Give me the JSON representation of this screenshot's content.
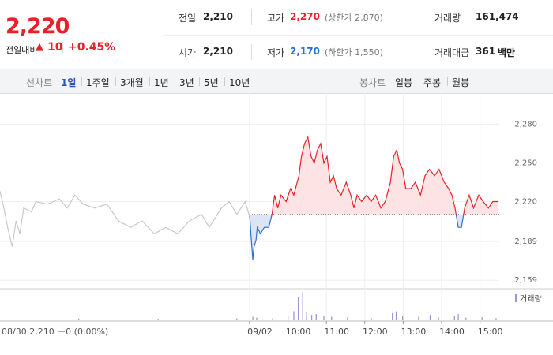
{
  "quote": {
    "price": "2,220",
    "change_label": "전일대비",
    "arrow": "▲",
    "change": "10",
    "percent": "+0.45%"
  },
  "info": {
    "rows": [
      [
        {
          "label": "전일",
          "value": "2,210"
        },
        {
          "label": "고가",
          "value": "2,270",
          "note": "(상한가 2,870)"
        },
        {
          "label": "거래량",
          "value": "161,474"
        }
      ],
      [
        {
          "label": "시가",
          "value": "2,210"
        },
        {
          "label": "저가",
          "value": "2,170",
          "note": "(하한가 1,550)"
        },
        {
          "label": "거래대금",
          "value": "361",
          "note": "백만"
        }
      ]
    ]
  },
  "tabs": {
    "line_label": "선차트",
    "line_items": [
      "1일",
      "1주일",
      "3개월",
      "1년",
      "3년",
      "5년",
      "10년"
    ],
    "candle_label": "봉차트",
    "candle_items": [
      "일봉",
      "주봉",
      "월봉"
    ]
  },
  "chart_data": {
    "type": "line",
    "footer_info": "08/30  2,210 ー0 (0.00%)",
    "xlim": [
      0,
      864
    ],
    "xticks": [
      {
        "value": 390,
        "label": "09/02"
      },
      {
        "value": 450,
        "label": "10:00"
      },
      {
        "value": 510,
        "label": "11:00"
      },
      {
        "value": 570,
        "label": "12:00"
      },
      {
        "value": 630,
        "label": "13:00"
      },
      {
        "value": 690,
        "label": "14:00"
      },
      {
        "value": 750,
        "label": "15:00"
      }
    ],
    "ylim": [
      2153,
      2298
    ],
    "yticks": [
      {
        "value": 2159,
        "label": "2,159"
      },
      {
        "value": 2189,
        "label": "2,189"
      },
      {
        "value": 2220,
        "label": "2,220"
      },
      {
        "value": 2250,
        "label": "2,250"
      },
      {
        "value": 2280,
        "label": "2,280"
      }
    ],
    "base_value": 2210,
    "grid": true,
    "series": [
      {
        "color": "#c8c8c8",
        "x": [
          0,
          6,
          12,
          19,
          25,
          31,
          37,
          49,
          56,
          74,
          93,
          105,
          117,
          130,
          148,
          167,
          185,
          204,
          222,
          241,
          259,
          278,
          296,
          315,
          327,
          346,
          358,
          370,
          383,
          389
        ],
        "values": [
          2228,
          2215,
          2200,
          2185,
          2205,
          2195,
          2215,
          2212,
          2220,
          2218,
          2222,
          2215,
          2225,
          2218,
          2215,
          2218,
          2205,
          2200,
          2205,
          2195,
          2200,
          2195,
          2205,
          2210,
          2200,
          2215,
          2220,
          2210,
          2220,
          2210
        ]
      },
      {
        "color": "#e8202a",
        "down_color": "#2c6fd3",
        "x": [
          390,
          392,
          395,
          397,
          400,
          402,
          407,
          413,
          420,
          425,
          429,
          434,
          439,
          447,
          454,
          459,
          467,
          471,
          476,
          481,
          486,
          491,
          496,
          501,
          506,
          511,
          516,
          521,
          526,
          533,
          541,
          548,
          553,
          558,
          565,
          573,
          580,
          587,
          595,
          602,
          610,
          615,
          620,
          624,
          629,
          634,
          642,
          649,
          657,
          664,
          671,
          679,
          686,
          694,
          701,
          706,
          711,
          716,
          721,
          726,
          733,
          740,
          748,
          755,
          763,
          770,
          778
        ],
        "values": [
          2210,
          2195,
          2175,
          2185,
          2190,
          2200,
          2195,
          2200,
          2200,
          2210,
          2225,
          2215,
          2225,
          2220,
          2230,
          2225,
          2240,
          2255,
          2265,
          2270,
          2255,
          2250,
          2260,
          2265,
          2250,
          2255,
          2235,
          2240,
          2230,
          2225,
          2235,
          2225,
          2215,
          2225,
          2220,
          2225,
          2220,
          2225,
          2215,
          2220,
          2235,
          2255,
          2260,
          2250,
          2245,
          2230,
          2230,
          2235,
          2225,
          2240,
          2245,
          2240,
          2245,
          2235,
          2230,
          2225,
          2215,
          2200,
          2200,
          2215,
          2225,
          2215,
          2225,
          2220,
          2215,
          2220,
          2220
        ]
      }
    ],
    "volume": {
      "name": "거래량",
      "color": "#a294d0",
      "ylim": [
        0,
        32000
      ],
      "x": [
        123,
        247,
        370,
        395,
        401,
        426,
        450,
        459,
        466,
        473,
        479,
        487,
        494,
        506,
        518,
        543,
        580,
        613,
        619,
        629,
        654,
        672,
        685,
        710,
        716,
        728,
        753,
        775
      ],
      "values": [
        1000,
        800,
        1200,
        3000,
        2000,
        1500,
        4000,
        9000,
        25000,
        30000,
        8000,
        5000,
        6000,
        4000,
        3000,
        2500,
        2000,
        7000,
        9000,
        4000,
        3000,
        5000,
        2500,
        3500,
        6000,
        2000,
        2500,
        1500
      ]
    }
  }
}
